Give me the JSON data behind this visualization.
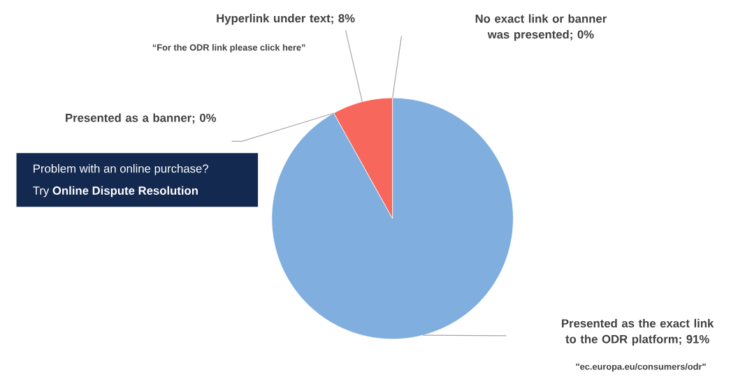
{
  "chart_data": {
    "type": "pie",
    "categories": [
      "No exact link or banner was presented; 0%",
      "Presented as the exact link to the ODR platform; 91%",
      "Presented as a banner; 0%",
      "Hyperlink under text; 8%"
    ],
    "values": [
      0,
      91,
      0,
      8
    ],
    "colors": [
      "#a6a6a6",
      "#7faedf",
      "#f5b800",
      "#f8675b"
    ],
    "annotations": [
      "“For the ODR link please click here”",
      "\"ec.europa.eu/consumers/odr\"",
      "Problem with an online purchase?",
      "Try **Online Dispute Resolution**"
    ]
  }
}
